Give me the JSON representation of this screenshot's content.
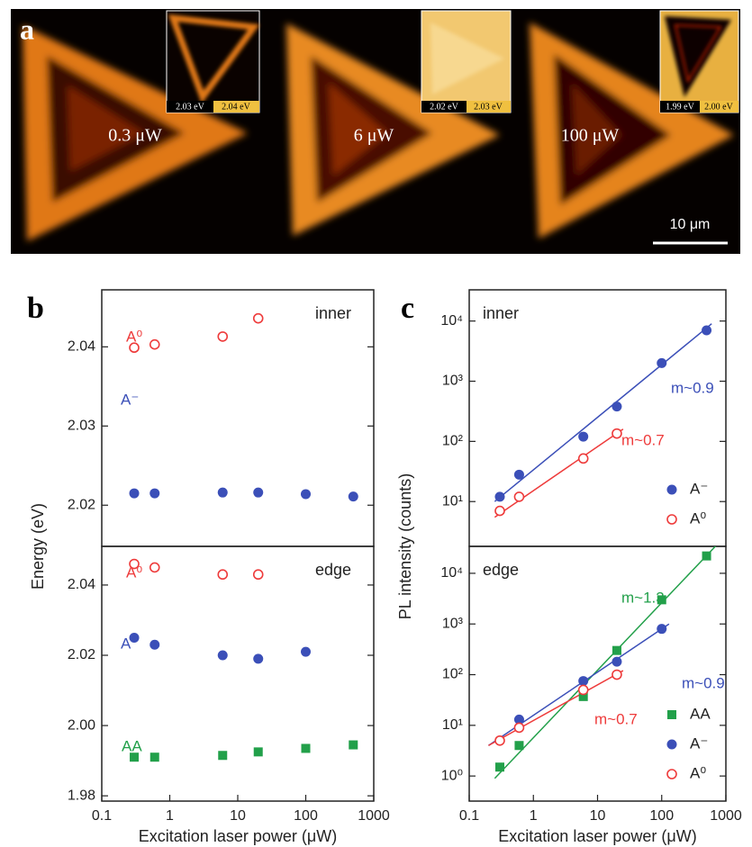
{
  "panel_a": {
    "letter": "a",
    "scale_bar": "10 μm",
    "images": [
      {
        "power": "0.3 μW",
        "scale_left": "2.03 eV",
        "scale_right": "2.04 eV"
      },
      {
        "power": "6 μW",
        "scale_left": "2.02 eV",
        "scale_right": "2.03 eV"
      },
      {
        "power": "100 μW",
        "scale_left": "1.99 eV",
        "scale_right": "2.00 eV"
      }
    ]
  },
  "chart_data": [
    {
      "type": "scatter",
      "panel": "b",
      "title": "inner",
      "ylabel": "Energy (eV)",
      "log_x": true,
      "xlim": [
        0.1,
        1000
      ],
      "ylim": [
        2.0148,
        2.0472
      ],
      "yticks": [
        2.02,
        2.03,
        2.04
      ],
      "series": [
        {
          "marker": "circle-open",
          "color": "#ee3b3b",
          "x": [
            0.3,
            0.6,
            6,
            20
          ],
          "values": [
            2.0399,
            2.0403,
            2.0413,
            2.0436
          ]
        },
        {
          "marker": "circle-filled",
          "color": "#3b4fb8",
          "x": [
            0.3,
            0.6,
            6,
            20,
            100,
            500
          ],
          "values": [
            2.0215,
            2.0215,
            2.0216,
            2.0216,
            2.0214,
            2.0211
          ]
        }
      ],
      "annotations": [
        {
          "text": "A⁰",
          "color": "#ee3b3b"
        },
        {
          "text": "A⁻",
          "color": "#3b4fb8"
        }
      ]
    },
    {
      "type": "scatter",
      "title": "edge",
      "xlabel": "Excitation laser power (μW)",
      "log_x": true,
      "xlim": [
        0.1,
        1000
      ],
      "xticks": [
        0.1,
        1,
        10,
        100,
        1000
      ],
      "ylim": [
        1.9785,
        2.051
      ],
      "yticks": [
        1.98,
        {
          "value": 2,
          "label": "2.00"
        },
        2.02,
        2.04
      ],
      "series": [
        {
          "marker": "circle-open",
          "color": "#ee3b3b",
          "x": [
            0.3,
            0.6,
            6,
            20
          ],
          "values": [
            2.046,
            2.045,
            2.043,
            2.043
          ]
        },
        {
          "marker": "circle-filled",
          "color": "#3b4fb8",
          "x": [
            0.3,
            0.6,
            6,
            20,
            100
          ],
          "values": [
            2.025,
            2.023,
            2.02,
            2.019,
            2.021
          ]
        },
        {
          "marker": "square",
          "color": "#22a04a",
          "x": [
            0.3,
            0.6,
            6,
            20,
            100,
            500
          ],
          "values": [
            1.991,
            1.991,
            1.9915,
            1.9925,
            1.9935,
            1.9945
          ]
        }
      ],
      "annotations": [
        {
          "text": "A⁰",
          "color": "#ee3b3b"
        },
        {
          "text": "A⁻",
          "color": "#3b4fb8"
        },
        {
          "text": "AA",
          "color": "#22a04a"
        }
      ]
    },
    {
      "type": "scatter",
      "panel": "c",
      "title": "inner",
      "ylabel": "PL intensity (counts)",
      "log_x": true,
      "log_y": true,
      "xlim": [
        0.1,
        1000
      ],
      "ylim": [
        1.8,
        33000
      ],
      "yticks": [
        {
          "value": 10,
          "label": "10¹"
        },
        {
          "value": 100,
          "label": "10²"
        },
        {
          "value": 1000,
          "label": "10³"
        },
        {
          "value": 10000,
          "label": "10⁴"
        }
      ],
      "legend": "lower right",
      "series": [
        {
          "name": "A⁻",
          "marker": "circle-filled",
          "color": "#3b4fb8",
          "x": [
            0.3,
            0.6,
            6,
            20,
            100,
            500
          ],
          "values": [
            12,
            28,
            120,
            380,
            2000,
            7000
          ]
        },
        {
          "name": "A⁰",
          "marker": "circle-open",
          "color": "#ee3b3b",
          "x": [
            0.3,
            0.6,
            6,
            20
          ],
          "values": [
            7,
            12,
            52,
            135
          ]
        }
      ],
      "fit_lines": [
        {
          "color": "#3b4fb8",
          "x": [
            0.25,
            600
          ],
          "values": [
            10,
            9000
          ]
        },
        {
          "color": "#ee3b3b",
          "x": [
            0.25,
            25
          ],
          "values": [
            5.5,
            160
          ]
        }
      ],
      "annotations": [
        {
          "text": "m~0.9",
          "color": "#3b4fb8"
        },
        {
          "text": "m~0.7",
          "color": "#ee3b3b"
        }
      ]
    },
    {
      "type": "scatter",
      "title": "edge",
      "xlabel": "Excitation laser power (μW)",
      "log_x": true,
      "log_y": true,
      "xlim": [
        0.1,
        1000
      ],
      "xticks": [
        0.1,
        1,
        10,
        100,
        1000
      ],
      "ylim": [
        0.32,
        34000
      ],
      "yticks": [
        {
          "value": 1,
          "label": "10⁰"
        },
        {
          "value": 10,
          "label": "10¹"
        },
        {
          "value": 100,
          "label": "10²"
        },
        {
          "value": 1000,
          "label": "10³"
        },
        {
          "value": 10000,
          "label": "10⁴"
        }
      ],
      "legend": "lower right",
      "series": [
        {
          "name": "AA",
          "marker": "square",
          "color": "#22a04a",
          "x": [
            0.3,
            0.6,
            6,
            20,
            100,
            500
          ],
          "values": [
            1.5,
            4,
            37,
            300,
            3000,
            22000
          ]
        },
        {
          "name": "A⁻",
          "marker": "circle-filled",
          "color": "#3b4fb8",
          "x": [
            0.3,
            0.6,
            6,
            20,
            100
          ],
          "values": [
            5,
            13,
            75,
            180,
            800
          ]
        },
        {
          "name": "A⁰",
          "marker": "circle-open",
          "color": "#ee3b3b",
          "x": [
            0.3,
            0.6,
            6,
            20
          ],
          "values": [
            5,
            9,
            50,
            100
          ]
        }
      ],
      "fit_lines": [
        {
          "color": "#22a04a",
          "x": [
            0.25,
            700
          ],
          "values": [
            0.9,
            35000
          ]
        },
        {
          "color": "#3b4fb8",
          "x": [
            0.2,
            130
          ],
          "values": [
            4,
            1000
          ]
        },
        {
          "color": "#ee3b3b",
          "x": [
            0.2,
            25
          ],
          "values": [
            4,
            120
          ]
        }
      ],
      "annotations": [
        {
          "text": "m~1.3",
          "color": "#22a04a"
        },
        {
          "text": "m~0.9",
          "color": "#3b4fb8"
        },
        {
          "text": "m~0.7",
          "color": "#ee3b3b"
        }
      ]
    }
  ]
}
